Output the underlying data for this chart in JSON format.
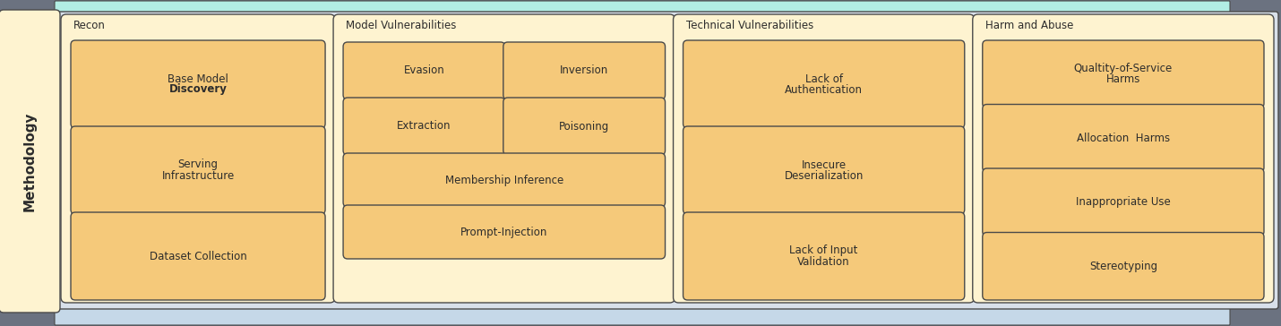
{
  "fig_width": 14.3,
  "fig_height": 3.64,
  "dpi": 100,
  "bg_outer": "#6b7280",
  "bg_row_label": "#fef3d0",
  "bg_main": "#d8e0ea",
  "bg_section": "#fef3d0",
  "bg_item": "#f5c97a",
  "border_color": "#4a4a4a",
  "text_color": "#2c2c2c",
  "row_label": "Methodology",
  "top_strip_color": "#b2ede4",
  "bottom_strip_color": "#c5d8e8",
  "sections": [
    {
      "title": "Recon",
      "items_single": [
        {
          "text": "Base Model\nDiscovery",
          "bold_line": "Discovery"
        },
        {
          "text": "Serving\nInfrastructure",
          "bold_line": ""
        },
        {
          "text": "Dataset Collection",
          "bold_line": ""
        }
      ]
    },
    {
      "title": "Model Vulnerabilities",
      "grid_items": [
        {
          "text": "Evasion",
          "col": 0,
          "row": 0
        },
        {
          "text": "Inversion",
          "col": 1,
          "row": 0
        },
        {
          "text": "Extraction",
          "col": 0,
          "row": 1
        },
        {
          "text": "Poisoning",
          "col": 1,
          "row": 1
        }
      ],
      "wide_items": [
        {
          "text": "Membership Inference"
        },
        {
          "text": "Prompt-Injection"
        }
      ]
    },
    {
      "title": "Technical Vulnerabilities",
      "items_single": [
        {
          "text": "Lack of\nAuthentication",
          "bold_line": ""
        },
        {
          "text": "Insecure\nDeserialization",
          "bold_line": ""
        },
        {
          "text": "Lack of Input\nValidation",
          "bold_line": ""
        }
      ]
    },
    {
      "title": "Harm and Abuse",
      "items_single": [
        {
          "text": "Qualtity-of-Service\nHarms",
          "bold_line": ""
        },
        {
          "text": "Allocation  Harms",
          "bold_line": ""
        },
        {
          "text": "Inappropriate Use",
          "bold_line": ""
        },
        {
          "text": "Stereotyping",
          "bold_line": ""
        }
      ]
    }
  ]
}
